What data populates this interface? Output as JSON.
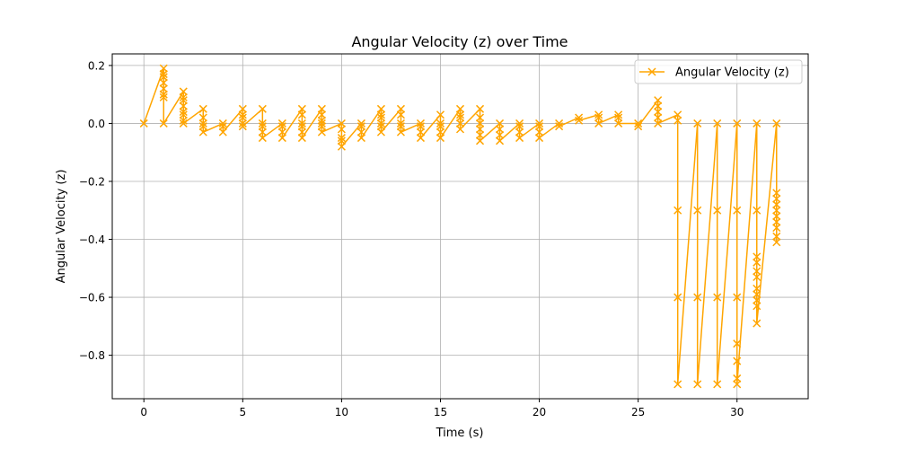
{
  "chart_data": {
    "type": "line",
    "title": "Angular Velocity (z) over Time",
    "xlabel": "Time (s)",
    "ylabel": "Angular Velocity (z)",
    "xlim": [
      -1.6,
      33.6
    ],
    "ylim": [
      -0.95,
      0.24
    ],
    "xticks": [
      0,
      5,
      10,
      15,
      20,
      25,
      30
    ],
    "xtick_labels": [
      "0",
      "5",
      "10",
      "15",
      "20",
      "25",
      "30"
    ],
    "yticks": [
      0.2,
      0.0,
      -0.2,
      -0.4,
      -0.6,
      -0.8
    ],
    "ytick_labels": [
      "0.2",
      "0.0",
      "−0.2",
      "−0.4",
      "−0.6",
      "−0.8"
    ],
    "grid": true,
    "legend_position": "top-right",
    "colors": {
      "series": "#FFA500",
      "grid": "#b0b0b0",
      "axes": "#000000"
    },
    "series": [
      {
        "name": "Angular Velocity (z)",
        "marker": "x",
        "points": [
          [
            0,
            0.0
          ],
          [
            1,
            0.19
          ],
          [
            1,
            0.17
          ],
          [
            1,
            0.16
          ],
          [
            1,
            0.14
          ],
          [
            1,
            0.12
          ],
          [
            1,
            0.1
          ],
          [
            1,
            0.09
          ],
          [
            1,
            0.0
          ],
          [
            2,
            0.11
          ],
          [
            2,
            0.09
          ],
          [
            2,
            0.08
          ],
          [
            2,
            0.06
          ],
          [
            2,
            0.04
          ],
          [
            2,
            0.03
          ],
          [
            2,
            0.01
          ],
          [
            2,
            0.0
          ],
          [
            3,
            0.05
          ],
          [
            3,
            0.02
          ],
          [
            3,
            0.0
          ],
          [
            3,
            -0.01
          ],
          [
            3,
            -0.03
          ],
          [
            4,
            0.0
          ],
          [
            4,
            -0.01
          ],
          [
            4,
            -0.03
          ],
          [
            5,
            0.05
          ],
          [
            5,
            0.03
          ],
          [
            5,
            0.02
          ],
          [
            5,
            0.0
          ],
          [
            5,
            -0.01
          ],
          [
            6,
            0.05
          ],
          [
            6,
            0.0
          ],
          [
            6,
            -0.01
          ],
          [
            6,
            -0.03
          ],
          [
            6,
            -0.05
          ],
          [
            7,
            0.0
          ],
          [
            7,
            -0.01
          ],
          [
            7,
            -0.03
          ],
          [
            7,
            -0.05
          ],
          [
            8,
            0.05
          ],
          [
            8,
            0.03
          ],
          [
            8,
            0.0
          ],
          [
            8,
            -0.01
          ],
          [
            8,
            -0.03
          ],
          [
            8,
            -0.05
          ],
          [
            9,
            0.05
          ],
          [
            9,
            0.03
          ],
          [
            9,
            0.01
          ],
          [
            9,
            0.0
          ],
          [
            9,
            -0.01
          ],
          [
            9,
            -0.03
          ],
          [
            10,
            0.0
          ],
          [
            10,
            -0.02
          ],
          [
            10,
            -0.05
          ],
          [
            10,
            -0.06
          ],
          [
            10,
            -0.08
          ],
          [
            11,
            0.0
          ],
          [
            11,
            -0.01
          ],
          [
            11,
            -0.03
          ],
          [
            11,
            -0.05
          ],
          [
            12,
            0.05
          ],
          [
            12,
            0.03
          ],
          [
            12,
            0.02
          ],
          [
            12,
            0.0
          ],
          [
            12,
            -0.01
          ],
          [
            12,
            -0.03
          ],
          [
            13,
            0.05
          ],
          [
            13,
            0.03
          ],
          [
            13,
            0.0
          ],
          [
            13,
            -0.01
          ],
          [
            13,
            -0.03
          ],
          [
            14,
            0.0
          ],
          [
            14,
            -0.01
          ],
          [
            14,
            -0.03
          ],
          [
            14,
            -0.05
          ],
          [
            15,
            0.03
          ],
          [
            15,
            0.0
          ],
          [
            15,
            -0.01
          ],
          [
            15,
            -0.03
          ],
          [
            15,
            -0.05
          ],
          [
            16,
            0.05
          ],
          [
            16,
            0.03
          ],
          [
            16,
            0.02
          ],
          [
            16,
            0.0
          ],
          [
            16,
            -0.02
          ],
          [
            17,
            0.05
          ],
          [
            17,
            0.02
          ],
          [
            17,
            0.0
          ],
          [
            17,
            -0.02
          ],
          [
            17,
            -0.04
          ],
          [
            17,
            -0.06
          ],
          [
            18,
            0.0
          ],
          [
            18,
            -0.02
          ],
          [
            18,
            -0.04
          ],
          [
            18,
            -0.06
          ],
          [
            19,
            0.0
          ],
          [
            19,
            -0.01
          ],
          [
            19,
            -0.03
          ],
          [
            19,
            -0.05
          ],
          [
            20,
            0.0
          ],
          [
            20,
            -0.01
          ],
          [
            20,
            -0.03
          ],
          [
            20,
            -0.05
          ],
          [
            21,
            0.0
          ],
          [
            21,
            -0.01
          ],
          [
            22,
            0.02
          ],
          [
            22,
            0.01
          ],
          [
            23,
            0.03
          ],
          [
            23,
            0.02
          ],
          [
            23,
            0.0
          ],
          [
            24,
            0.03
          ],
          [
            24,
            0.02
          ],
          [
            24,
            0.0
          ],
          [
            25,
            0.0
          ],
          [
            25,
            -0.01
          ],
          [
            26,
            0.08
          ],
          [
            26,
            0.06
          ],
          [
            26,
            0.04
          ],
          [
            26,
            0.02
          ],
          [
            26,
            0.0
          ],
          [
            27,
            0.03
          ],
          [
            27,
            0.01
          ],
          [
            27,
            -0.3
          ],
          [
            27,
            -0.6
          ],
          [
            27,
            -0.9
          ],
          [
            28,
            0.0
          ],
          [
            28,
            -0.3
          ],
          [
            28,
            -0.6
          ],
          [
            28,
            -0.9
          ],
          [
            29,
            0.0
          ],
          [
            29,
            -0.3
          ],
          [
            29,
            -0.6
          ],
          [
            29,
            -0.9
          ],
          [
            30,
            0.0
          ],
          [
            30,
            -0.3
          ],
          [
            30,
            -0.6
          ],
          [
            30,
            -0.76
          ],
          [
            30,
            -0.82
          ],
          [
            30,
            -0.88
          ],
          [
            30,
            -0.9
          ],
          [
            31,
            0.0
          ],
          [
            31,
            -0.3
          ],
          [
            31,
            -0.46
          ],
          [
            31,
            -0.48
          ],
          [
            31,
            -0.51
          ],
          [
            31,
            -0.53
          ],
          [
            31,
            -0.57
          ],
          [
            31,
            -0.59
          ],
          [
            31,
            -0.61
          ],
          [
            31,
            -0.63
          ],
          [
            31,
            -0.69
          ],
          [
            32,
            0.0
          ],
          [
            32,
            -0.24
          ],
          [
            32,
            -0.26
          ],
          [
            32,
            -0.28
          ],
          [
            32,
            -0.3
          ],
          [
            32,
            -0.32
          ],
          [
            32,
            -0.34
          ],
          [
            32,
            -0.36
          ],
          [
            32,
            -0.39
          ],
          [
            32,
            -0.41
          ]
        ]
      }
    ]
  }
}
